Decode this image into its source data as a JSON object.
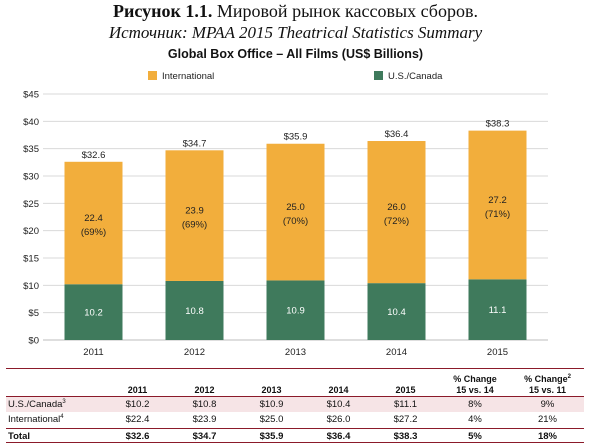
{
  "caption": {
    "figure_label": "Рисунок 1.1.",
    "figure_text": "Мировой рынок кассовых сборов.",
    "source": "Источник: MPAA 2015 Theatrical Statistics Summary"
  },
  "colors": {
    "international": "#F2AE3C",
    "us_canada": "#3F7A5C",
    "grid": "#d9d9d9",
    "table_rule": "#8b1a2a",
    "table_highlight": "#f6e4e6"
  },
  "chart_data": {
    "type": "bar",
    "stacked": true,
    "title": "Global Box Office – All Films (US$ Billions)",
    "categories": [
      "2011",
      "2012",
      "2013",
      "2014",
      "2015"
    ],
    "series": [
      {
        "name": "U.S./Canada",
        "values": [
          10.2,
          10.8,
          10.9,
          10.4,
          11.1
        ],
        "labels": [
          "10.2",
          "10.8",
          "10.9",
          "10.4",
          "11.1"
        ]
      },
      {
        "name": "International",
        "values": [
          22.4,
          23.9,
          25.0,
          26.0,
          27.2
        ],
        "labels": [
          "22.4",
          "23.9",
          "25.0",
          "26.0",
          "27.2"
        ],
        "share_labels": [
          "(69%)",
          "(69%)",
          "(70%)",
          "(72%)",
          "(71%)"
        ]
      }
    ],
    "totals": [
      "$32.6",
      "$34.7",
      "$35.9",
      "$36.4",
      "$38.3"
    ],
    "ylim": [
      0,
      45
    ],
    "yticks": [
      "$0",
      "$5",
      "$10",
      "$15",
      "$20",
      "$25",
      "$30",
      "$35",
      "$40",
      "$45"
    ],
    "grid": true,
    "legend": "top",
    "legend_items": [
      "International",
      "U.S./Canada"
    ]
  },
  "table": {
    "headers": [
      "",
      "2011",
      "2012",
      "2013",
      "2014",
      "2015"
    ],
    "change1_header_line1": "% Change",
    "change1_header_line2": "15 vs. 14",
    "change2_header_line1": "% Change",
    "change2_sup": "2",
    "change2_header_line2": "15 vs. 11",
    "rows": [
      {
        "label": "U.S./Canada",
        "sup": "3",
        "cells": [
          "$10.2",
          "$10.8",
          "$10.9",
          "$10.4",
          "$11.1",
          "8%",
          "9%"
        ]
      },
      {
        "label": "International",
        "sup": "4",
        "cells": [
          "$22.4",
          "$23.9",
          "$25.0",
          "$26.0",
          "$27.2",
          "4%",
          "21%"
        ]
      },
      {
        "label": "Total",
        "sup": "",
        "cells": [
          "$32.6",
          "$34.7",
          "$35.9",
          "$36.4",
          "$38.3",
          "5%",
          "18%"
        ]
      }
    ]
  }
}
